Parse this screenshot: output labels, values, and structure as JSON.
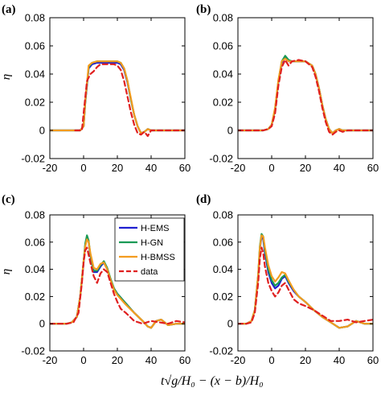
{
  "xlabel": "t√g/H₀ − (x − b)/H₀",
  "ylabel": "η",
  "colors": {
    "H-EMS": "#1f1fd0",
    "H-GN": "#1a9a55",
    "H-BMSS": "#f39c1f",
    "data": "#e02020"
  },
  "chart_data": [
    {
      "type": "line",
      "panel_label": "(a)",
      "xlim": [
        -20,
        60
      ],
      "ylim": [
        -0.02,
        0.08
      ],
      "xticks": [
        "-20",
        "0",
        "20",
        "40",
        "60"
      ],
      "yticks": [
        "-0.02",
        "0",
        "0.02",
        "0.04",
        "0.06",
        "0.08"
      ],
      "legend": false,
      "series": [
        {
          "name": "H-EMS",
          "x": [
            -20,
            -2,
            0,
            1,
            3,
            5,
            8,
            12,
            16,
            20,
            22,
            24,
            26,
            28,
            30,
            32,
            34,
            36,
            38,
            40,
            45,
            50,
            55,
            60
          ],
          "y": [
            0,
            0,
            0.003,
            0.02,
            0.044,
            0.047,
            0.048,
            0.048,
            0.048,
            0.048,
            0.047,
            0.043,
            0.034,
            0.022,
            0.011,
            0.003,
            -0.002,
            -0.001,
            0.001,
            0,
            0,
            0,
            0,
            0
          ]
        },
        {
          "name": "H-GN",
          "x": [
            -20,
            -2,
            0,
            1,
            3,
            5,
            8,
            12,
            16,
            20,
            22,
            24,
            26,
            28,
            30,
            32,
            34,
            36,
            38,
            40,
            45,
            50,
            55,
            60
          ],
          "y": [
            0,
            0,
            0.003,
            0.02,
            0.045,
            0.048,
            0.049,
            0.049,
            0.049,
            0.049,
            0.048,
            0.044,
            0.035,
            0.022,
            0.011,
            0.003,
            -0.002,
            -0.001,
            0.001,
            0,
            0,
            0,
            0,
            0
          ]
        },
        {
          "name": "H-BMSS",
          "x": [
            -20,
            -2,
            0,
            1,
            3,
            5,
            8,
            12,
            16,
            20,
            22,
            24,
            26,
            28,
            30,
            32,
            34,
            36,
            38,
            40,
            45,
            50,
            55,
            60
          ],
          "y": [
            0,
            0,
            0.003,
            0.021,
            0.046,
            0.048,
            0.049,
            0.049,
            0.049,
            0.049,
            0.048,
            0.044,
            0.035,
            0.023,
            0.011,
            0.003,
            -0.002,
            -0.001,
            0.001,
            0,
            0,
            0,
            0,
            0
          ]
        },
        {
          "name": "data",
          "x": [
            -5,
            -1,
            0,
            2,
            4,
            6,
            8,
            10,
            14,
            18,
            20,
            22,
            24,
            26,
            28,
            30,
            32,
            34,
            36,
            38,
            40,
            42,
            45,
            50,
            55,
            60
          ],
          "y": [
            0,
            0,
            0.012,
            0.035,
            0.04,
            0.042,
            0.045,
            0.047,
            0.047,
            0.047,
            0.046,
            0.043,
            0.035,
            0.024,
            0.013,
            0.004,
            -0.002,
            -0.003,
            -0.001,
            -0.004,
            0,
            0,
            0,
            0,
            0,
            0
          ]
        }
      ]
    },
    {
      "type": "line",
      "panel_label": "(b)",
      "xlim": [
        -20,
        60
      ],
      "ylim": [
        -0.02,
        0.08
      ],
      "xticks": [
        "-20",
        "0",
        "20",
        "40",
        "60"
      ],
      "yticks": [
        "-0.02",
        "0",
        "0.02",
        "0.04",
        "0.06",
        "0.08"
      ],
      "legend": false,
      "series": [
        {
          "name": "H-EMS",
          "x": [
            -20,
            -5,
            -2,
            0,
            2,
            4,
            6,
            8,
            10,
            12,
            16,
            20,
            24,
            26,
            28,
            30,
            32,
            34,
            36,
            38,
            40,
            42,
            45,
            50,
            55,
            60
          ],
          "y": [
            0,
            0,
            0.001,
            0.004,
            0.015,
            0.035,
            0.048,
            0.052,
            0.049,
            0.049,
            0.049,
            0.049,
            0.046,
            0.04,
            0.03,
            0.018,
            0.008,
            0.001,
            -0.002,
            0,
            0.001,
            0,
            0,
            0,
            0,
            0
          ]
        },
        {
          "name": "H-GN",
          "x": [
            -20,
            -5,
            -2,
            0,
            2,
            4,
            6,
            8,
            10,
            12,
            16,
            20,
            24,
            26,
            28,
            30,
            32,
            34,
            36,
            38,
            40,
            42,
            45,
            50,
            55,
            60
          ],
          "y": [
            0,
            0,
            0.001,
            0.004,
            0.015,
            0.035,
            0.049,
            0.053,
            0.05,
            0.049,
            0.049,
            0.049,
            0.046,
            0.04,
            0.03,
            0.018,
            0.008,
            0.001,
            -0.002,
            0,
            0.001,
            0,
            0,
            0,
            0,
            0
          ]
        },
        {
          "name": "H-BMSS",
          "x": [
            -20,
            -5,
            -2,
            0,
            2,
            4,
            6,
            8,
            10,
            12,
            16,
            20,
            24,
            26,
            28,
            30,
            32,
            34,
            36,
            38,
            40,
            42,
            45,
            50,
            55,
            60
          ],
          "y": [
            0,
            0,
            0.001,
            0.004,
            0.016,
            0.036,
            0.049,
            0.051,
            0.049,
            0.049,
            0.049,
            0.049,
            0.046,
            0.04,
            0.03,
            0.018,
            0.008,
            0.001,
            -0.002,
            0,
            0.001,
            0,
            0,
            0,
            0,
            0
          ]
        },
        {
          "name": "data",
          "x": [
            -20,
            -5,
            -2,
            0,
            2,
            4,
            6,
            8,
            10,
            12,
            16,
            20,
            24,
            26,
            28,
            30,
            32,
            34,
            36,
            38,
            40,
            42,
            45,
            50,
            55,
            60
          ],
          "y": [
            0,
            0,
            0.001,
            0.003,
            0.012,
            0.032,
            0.045,
            0.05,
            0.046,
            0.049,
            0.05,
            0.049,
            0.045,
            0.038,
            0.028,
            0.016,
            0.006,
            -0.001,
            -0.003,
            -0.001,
            0,
            -0.001,
            0,
            0,
            0,
            0
          ]
        }
      ]
    },
    {
      "type": "line",
      "panel_label": "(c)",
      "xlim": [
        -20,
        60
      ],
      "ylim": [
        -0.02,
        0.08
      ],
      "xticks": [
        "-20",
        "0",
        "20",
        "40",
        "60"
      ],
      "yticks": [
        "-0.02",
        "0",
        "0.02",
        "0.04",
        "0.06",
        "0.08"
      ],
      "legend": true,
      "legend_position": "top-right",
      "series": [
        {
          "name": "H-EMS",
          "x": [
            -20,
            -10,
            -7,
            -4,
            -2,
            0,
            1,
            2,
            3,
            4,
            6,
            8,
            10,
            12,
            14,
            16,
            18,
            20,
            25,
            30,
            35,
            38,
            40,
            43,
            46,
            50,
            55,
            60
          ],
          "y": [
            0,
            0,
            0.001,
            0.005,
            0.02,
            0.045,
            0.058,
            0.064,
            0.06,
            0.05,
            0.038,
            0.038,
            0.042,
            0.045,
            0.04,
            0.032,
            0.026,
            0.022,
            0.015,
            0.008,
            0.002,
            -0.002,
            -0.003,
            0.002,
            0.003,
            -0.001,
            0,
            0
          ]
        },
        {
          "name": "H-GN",
          "x": [
            -20,
            -10,
            -7,
            -4,
            -2,
            0,
            1,
            2,
            3,
            4,
            6,
            8,
            10,
            12,
            14,
            16,
            18,
            20,
            25,
            30,
            35,
            38,
            40,
            43,
            46,
            50,
            55,
            60
          ],
          "y": [
            0,
            0,
            0.001,
            0.005,
            0.02,
            0.046,
            0.059,
            0.065,
            0.061,
            0.051,
            0.039,
            0.039,
            0.043,
            0.046,
            0.041,
            0.033,
            0.026,
            0.022,
            0.015,
            0.008,
            0.002,
            -0.002,
            -0.003,
            0.002,
            0.003,
            -0.001,
            0,
            0
          ]
        },
        {
          "name": "H-BMSS",
          "x": [
            -20,
            -10,
            -7,
            -4,
            -2,
            0,
            1,
            2,
            3,
            4,
            6,
            8,
            10,
            12,
            14,
            16,
            18,
            20,
            25,
            30,
            35,
            38,
            40,
            43,
            46,
            50,
            55,
            60
          ],
          "y": [
            0,
            0,
            0.001,
            0.005,
            0.02,
            0.046,
            0.057,
            0.062,
            0.06,
            0.052,
            0.041,
            0.04,
            0.044,
            0.045,
            0.04,
            0.032,
            0.025,
            0.021,
            0.014,
            0.008,
            0.002,
            -0.002,
            -0.003,
            0.002,
            0.003,
            -0.001,
            0,
            0
          ]
        },
        {
          "name": "data",
          "x": [
            -20,
            -10,
            -6,
            -3,
            -1,
            0,
            1,
            2,
            4,
            6,
            8,
            10,
            12,
            14,
            16,
            18,
            20,
            22,
            25,
            30,
            35,
            40,
            45,
            50,
            55,
            60
          ],
          "y": [
            0,
            0,
            0.001,
            0.008,
            0.03,
            0.045,
            0.054,
            0.056,
            0.045,
            0.035,
            0.03,
            0.037,
            0.04,
            0.038,
            0.03,
            0.022,
            0.016,
            0.011,
            0.008,
            0.002,
            0,
            0.002,
            0.001,
            0,
            0.002,
            0.001
          ]
        }
      ]
    },
    {
      "type": "line",
      "panel_label": "(d)",
      "xlim": [
        -20,
        60
      ],
      "ylim": [
        -0.02,
        0.08
      ],
      "xticks": [
        "-20",
        "0",
        "20",
        "40",
        "60"
      ],
      "yticks": [
        "-0.02",
        "0",
        "0.02",
        "0.04",
        "0.06",
        "0.08"
      ],
      "legend": false,
      "series": [
        {
          "name": "H-EMS",
          "x": [
            -20,
            -15,
            -12,
            -10,
            -8,
            -7,
            -6,
            -5,
            -4,
            -2,
            0,
            2,
            4,
            6,
            8,
            10,
            13,
            16,
            20,
            25,
            30,
            35,
            40,
            45,
            50,
            55,
            60
          ],
          "y": [
            0,
            0,
            0.002,
            0.01,
            0.035,
            0.055,
            0.064,
            0.062,
            0.052,
            0.038,
            0.03,
            0.026,
            0.028,
            0.033,
            0.035,
            0.03,
            0.024,
            0.02,
            0.016,
            0.01,
            0.005,
            0.001,
            -0.003,
            -0.002,
            0.002,
            0,
            0
          ]
        },
        {
          "name": "H-GN",
          "x": [
            -20,
            -15,
            -12,
            -10,
            -8,
            -7,
            -6,
            -5,
            -4,
            -2,
            0,
            2,
            4,
            6,
            8,
            10,
            13,
            16,
            20,
            25,
            30,
            35,
            40,
            45,
            50,
            55,
            60
          ],
          "y": [
            0,
            0,
            0.002,
            0.01,
            0.036,
            0.057,
            0.066,
            0.064,
            0.054,
            0.04,
            0.032,
            0.028,
            0.03,
            0.034,
            0.036,
            0.031,
            0.025,
            0.02,
            0.016,
            0.01,
            0.005,
            0.001,
            -0.003,
            -0.002,
            0.002,
            0,
            0
          ]
        },
        {
          "name": "H-BMSS",
          "x": [
            -20,
            -15,
            -12,
            -10,
            -8,
            -7,
            -6,
            -5,
            -4,
            -2,
            0,
            2,
            4,
            6,
            8,
            10,
            13,
            16,
            20,
            25,
            30,
            35,
            40,
            45,
            50,
            55,
            60
          ],
          "y": [
            0,
            0,
            0.002,
            0.01,
            0.036,
            0.056,
            0.065,
            0.064,
            0.056,
            0.043,
            0.035,
            0.031,
            0.034,
            0.038,
            0.037,
            0.032,
            0.025,
            0.02,
            0.016,
            0.01,
            0.005,
            0.001,
            -0.003,
            -0.002,
            0.002,
            0,
            0
          ]
        },
        {
          "name": "data",
          "x": [
            -20,
            -15,
            -12,
            -10,
            -8,
            -7,
            -6,
            -5,
            -4,
            -2,
            0,
            2,
            4,
            6,
            8,
            10,
            13,
            16,
            20,
            25,
            30,
            35,
            40,
            45,
            50,
            55,
            60
          ],
          "y": [
            0,
            0,
            0.001,
            0.008,
            0.03,
            0.048,
            0.056,
            0.052,
            0.042,
            0.03,
            0.024,
            0.02,
            0.023,
            0.028,
            0.03,
            0.025,
            0.018,
            0.015,
            0.013,
            0.01,
            0.006,
            0.002,
            0.002,
            0.003,
            0.001,
            0.002,
            0.003
          ]
        }
      ]
    }
  ]
}
